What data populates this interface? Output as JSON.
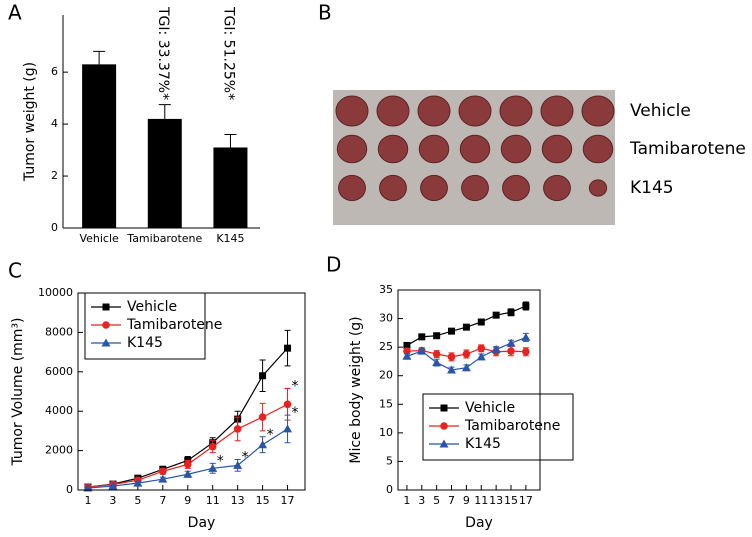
{
  "chart_data": [
    {
      "type": "bar",
      "panel": "A",
      "ylabel": "Tumor weight (g)",
      "categories": [
        "Vehicle",
        "Tamibarotene",
        "K145"
      ],
      "values": [
        6.3,
        4.2,
        3.1
      ],
      "errors": [
        0.5,
        0.55,
        0.5
      ],
      "annotations": [
        null,
        "TGI: 33.37%*",
        "TGI: 51.25%*"
      ],
      "color": "#000000",
      "ylim": [
        0,
        8.2
      ],
      "yticks": [
        0,
        2,
        4,
        6
      ]
    },
    {
      "type": "image",
      "panel": "B",
      "labels": [
        "Vehicle",
        "Tamibarotene",
        "K145"
      ]
    },
    {
      "type": "line",
      "panel": "C",
      "xlabel": "Day",
      "ylabel": "Tumor Volume (mm³)",
      "x": [
        1,
        3,
        5,
        7,
        9,
        11,
        13,
        15,
        17
      ],
      "xlim": [
        0.2,
        18.4
      ],
      "xticks": [
        1,
        3,
        5,
        7,
        9,
        11,
        13,
        15,
        17
      ],
      "ylim": [
        0,
        10000
      ],
      "yticks": [
        0,
        2000,
        4000,
        6000,
        8000,
        10000
      ],
      "legend": "upper left",
      "point_label": "*",
      "series": [
        {
          "name": "Vehicle",
          "color": "#000000",
          "marker": "square",
          "values": [
            150,
            300,
            600,
            1050,
            1500,
            2400,
            3600,
            5800,
            7200
          ],
          "errors": [
            50,
            80,
            100,
            150,
            200,
            250,
            400,
            800,
            900
          ],
          "starred": [
            false,
            false,
            false,
            false,
            false,
            false,
            false,
            false,
            false
          ]
        },
        {
          "name": "Tamibarotene",
          "color": "#e8231f",
          "marker": "circle",
          "values": [
            150,
            280,
            500,
            950,
            1300,
            2200,
            3100,
            3700,
            4350
          ],
          "errors": [
            50,
            70,
            100,
            150,
            200,
            300,
            600,
            700,
            800
          ],
          "starred": [
            false,
            false,
            false,
            false,
            false,
            false,
            false,
            false,
            true
          ]
        },
        {
          "name": "K145",
          "color": "#2a55a8",
          "marker": "triangle",
          "values": [
            100,
            200,
            350,
            550,
            800,
            1100,
            1250,
            2300,
            3100
          ],
          "errors": [
            40,
            60,
            80,
            100,
            150,
            250,
            300,
            400,
            700
          ],
          "starred": [
            false,
            false,
            false,
            false,
            false,
            true,
            true,
            true,
            true
          ]
        }
      ]
    },
    {
      "type": "line",
      "panel": "D",
      "xlabel": "Day",
      "ylabel": "Mice body weight (g)",
      "x": [
        1,
        3,
        5,
        7,
        9,
        11,
        13,
        15,
        17
      ],
      "xlim": [
        -0.2,
        18.9
      ],
      "xticks": [
        1,
        3,
        5,
        7,
        9,
        11,
        13,
        15,
        17
      ],
      "ylim": [
        0,
        35
      ],
      "yticks": [
        0,
        5,
        10,
        15,
        20,
        25,
        30,
        35
      ],
      "legend": "lower left",
      "series": [
        {
          "name": "Vehicle",
          "color": "#000000",
          "marker": "square",
          "values": [
            25.3,
            26.8,
            27,
            27.8,
            28.5,
            29.4,
            30.6,
            31.1,
            32.2
          ],
          "errors": [
            0.3,
            0.3,
            0.4,
            0.4,
            0.4,
            0.4,
            0.4,
            0.6,
            0.7
          ]
        },
        {
          "name": "Tamibarotene",
          "color": "#e8231f",
          "marker": "circle",
          "values": [
            24.3,
            24.4,
            23.8,
            23.3,
            23.8,
            24.8,
            24.2,
            24.3,
            24.2
          ],
          "errors": [
            0.5,
            0.5,
            0.6,
            0.7,
            0.7,
            0.6,
            0.7,
            0.8,
            0.7
          ]
        },
        {
          "name": "K145",
          "color": "#2a55a8",
          "marker": "triangle",
          "values": [
            23.4,
            24.3,
            22.3,
            21,
            21.4,
            23.3,
            24.6,
            25.7,
            26.7
          ],
          "errors": [
            0.4,
            0.4,
            0.6,
            0.5,
            0.5,
            0.5,
            0.5,
            0.5,
            0.7
          ]
        }
      ]
    }
  ]
}
